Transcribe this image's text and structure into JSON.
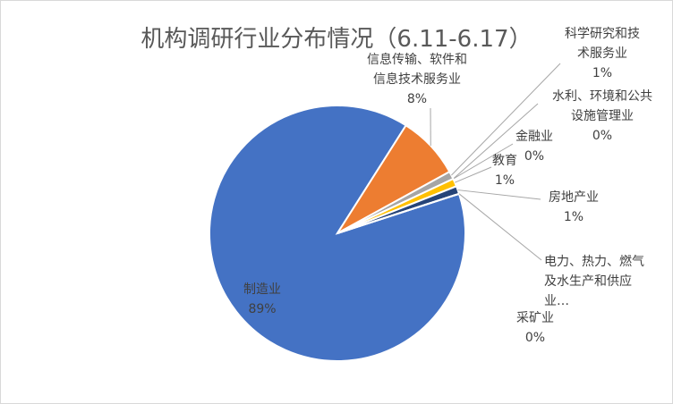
{
  "chart_data": {
    "type": "pie",
    "title": "机构调研行业分布情况（6.11-6.17）",
    "categories": [
      "制造业",
      "信息传输、软件和信息技术服务业",
      "科学研究和技术服务业",
      "水利、环境和公共设施管理业",
      "金融业",
      "教育",
      "房地产业",
      "电力、热力、燃气及水生产和供应业…",
      "采矿业"
    ],
    "values": [
      89,
      8,
      1,
      0,
      0,
      1,
      1,
      0,
      0
    ],
    "value_labels": [
      "89%",
      "8%",
      "1%",
      "0%",
      "0%",
      "1%",
      "1%",
      null,
      "0%"
    ],
    "colors": [
      "#4472c4",
      "#ed7d31",
      "#a5a5a5",
      "#ffc000",
      "#5b9bd5",
      "#ffc000",
      "#264478",
      "#9e480e",
      "#636363"
    ]
  }
}
